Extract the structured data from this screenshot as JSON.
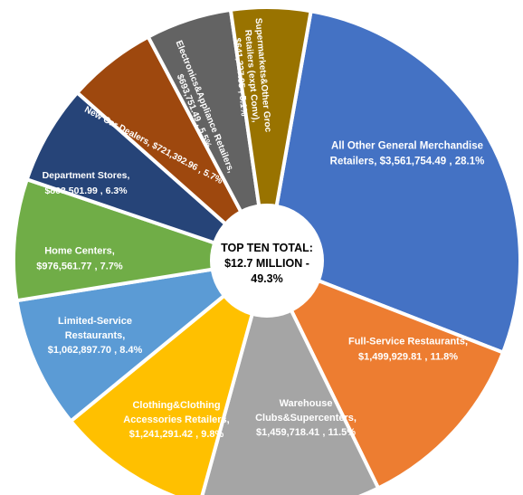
{
  "chart_data": {
    "type": "pie",
    "title": "",
    "center_text": [
      "TOP TEN TOTAL:",
      "$12.7 MILLION -",
      "49.3%"
    ],
    "slices": [
      {
        "category": "All Other General Merchandise Retailers",
        "value": 3561754.49,
        "percent": 28.1,
        "color": "#4472C4",
        "label_lines": [
          "All Other General Merchandise",
          "Retailers, $3,561,754.49 , 28.1%"
        ]
      },
      {
        "category": "Full-Service Restaurants",
        "value": 1499929.81,
        "percent": 11.8,
        "color": "#ED7D31",
        "label_lines": [
          "Full-Service Restaurants,",
          "$1,499,929.81 , 11.8%"
        ]
      },
      {
        "category": "Warehouse Clubs&Supercenters",
        "value": 1459718.41,
        "percent": 11.5,
        "color": "#A5A5A5",
        "label_lines": [
          "Warehouse",
          "Clubs&Supercenters,",
          "$1,459,718.41 , 11.5%"
        ]
      },
      {
        "category": "Clothing&Clothing Accessories Retailers",
        "value": 1241291.42,
        "percent": 9.8,
        "color": "#FFC000",
        "label_lines": [
          "Clothing&Clothing",
          "Accessories Retailers,",
          "$1,241,291.42 , 9.8%"
        ]
      },
      {
        "category": "Limited-Service Restaurants",
        "value": 1062897.7,
        "percent": 8.4,
        "color": "#5B9BD5",
        "label_lines": [
          "Limited-Service",
          "Restaurants,",
          "$1,062,897.70 , 8.4%"
        ]
      },
      {
        "category": "Home Centers",
        "value": 976561.77,
        "percent": 7.7,
        "color": "#70AD47",
        "label_lines": [
          "Home Centers,",
          "$976,561.77 , 7.7%"
        ]
      },
      {
        "category": "Department Stores",
        "value": 803501.99,
        "percent": 6.3,
        "color": "#264478",
        "label_lines": [
          "Department Stores,",
          "$803,501.99 , 6.3%"
        ]
      },
      {
        "category": "New Car Dealers",
        "value": 721392.96,
        "percent": 5.7,
        "color": "#9E480E",
        "label_lines": [
          "New Car Dealers, $721,392.96 , 5.7%"
        ]
      },
      {
        "category": "Electronics&Appliance Retailers",
        "value": 693751.49,
        "percent": 5.5,
        "color": "#636363",
        "label_lines": [
          "Electronics&Appliance Retailers,",
          "$693,751.49 , 5.5%"
        ]
      },
      {
        "category": "Supermarkets&Other Groc Retailers (expt Conv)",
        "value": 641327.85,
        "percent": 5.1,
        "color": "#997300",
        "label_lines": [
          "Supermarkets&Other Groc",
          "Retailers (expt Conv),",
          "$641,327.85 , 5.1%"
        ]
      }
    ]
  }
}
